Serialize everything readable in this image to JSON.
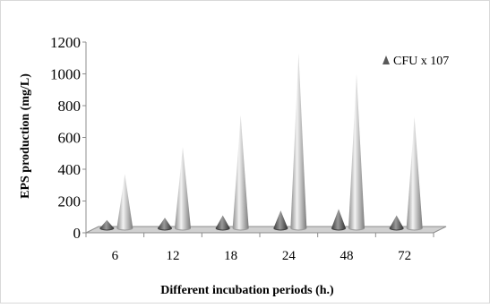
{
  "chart_data": {
    "type": "bar",
    "style": "3d-cone",
    "xlabel": "Different incubation periods (h.)",
    "ylabel": "EPS production (mg/L)",
    "categories": [
      "6",
      "12",
      "18",
      "24",
      "48",
      "72"
    ],
    "ylim": [
      0,
      1200
    ],
    "yticks": [
      "0",
      "200",
      "400",
      "600",
      "800",
      "1000",
      "1200"
    ],
    "series": [
      {
        "name": "CFU x 107",
        "values": [
          80,
          95,
          110,
          140,
          150,
          110
        ],
        "color": "#595959"
      },
      {
        "name": "",
        "values": [
          370,
          540,
          740,
          1130,
          1000,
          730
        ],
        "color": "#bfbfbf"
      }
    ],
    "legend_position": "top-right",
    "grid": false
  }
}
